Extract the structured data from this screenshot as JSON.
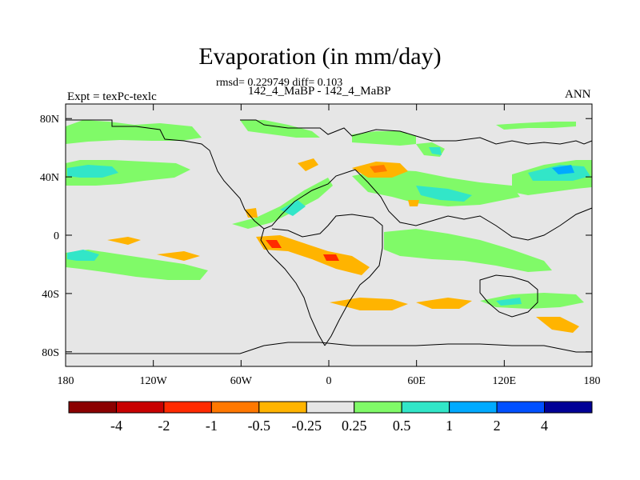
{
  "title": "Evaporation (in mm/day)",
  "stats_text": "rmsd= 0.229749 diff= 0.103",
  "subtitle": "142_4_MaBP - 142_4_MaBP",
  "left_label": "Expt = texPc-texlc",
  "right_label": "ANN",
  "chart_data": {
    "type": "heatmap",
    "title": "Evaporation (in mm/day)",
    "projection": "cylindrical equidistant",
    "xlabel": "",
    "ylabel": "",
    "xlim": [
      -180,
      180
    ],
    "ylim": [
      -90,
      90
    ],
    "x_ticks": [
      {
        "value": -180,
        "label": "180"
      },
      {
        "value": -120,
        "label": "120W"
      },
      {
        "value": -60,
        "label": "60W"
      },
      {
        "value": 0,
        "label": "0"
      },
      {
        "value": 60,
        "label": "60E"
      },
      {
        "value": 120,
        "label": "120E"
      },
      {
        "value": 180,
        "label": "180"
      }
    ],
    "y_ticks": [
      {
        "value": 80,
        "label": "80N"
      },
      {
        "value": 40,
        "label": "40N"
      },
      {
        "value": 0,
        "label": "0"
      },
      {
        "value": -40,
        "label": "40S"
      },
      {
        "value": -80,
        "label": "80S"
      }
    ],
    "colorbar": {
      "colors": [
        "#8b0000",
        "#c80000",
        "#ff2a00",
        "#ff7800",
        "#ffb400",
        "#e6e6e6",
        "#80fa68",
        "#32e6c8",
        "#00aaff",
        "#0050ff",
        "#000096"
      ],
      "labels": [
        "-4",
        "-2",
        "-1",
        "-0.5",
        "-0.25",
        "0.25",
        "0.5",
        "1",
        "2",
        "4"
      ],
      "levels": [
        -4,
        -2,
        -1,
        -0.5,
        -0.25,
        0.25,
        0.5,
        1,
        2,
        4
      ]
    },
    "background_class": "-0.25 to 0.25",
    "regions": [
      {
        "name": "north-pacific-band",
        "class": "0.25 to 0.5",
        "lon": [
          -180,
          -110
        ],
        "lat": [
          50,
          60
        ]
      },
      {
        "name": "north-pacific-core",
        "class": "0.5 to 1",
        "lon": [
          -180,
          -140
        ],
        "lat": [
          38,
          48
        ]
      },
      {
        "name": "north-atlantic-band",
        "class": "0.5 to 1",
        "lon": [
          -50,
          -10
        ],
        "lat": [
          25,
          50
        ]
      },
      {
        "name": "equatorial-pacific",
        "class": "-0.5 to -0.25",
        "lon": [
          -155,
          -140
        ],
        "lat": [
          -3,
          0
        ]
      },
      {
        "name": "amazon-negative",
        "class": "-1 to -0.5",
        "lon": [
          -50,
          5
        ],
        "lat": [
          -30,
          -5
        ]
      },
      {
        "name": "south-pacific-band",
        "class": "0.5 to 1",
        "lon": [
          -180,
          -140
        ],
        "lat": [
          -28,
          -18
        ]
      },
      {
        "name": "indian-ocean-band",
        "class": "0.25 to 0.5",
        "lon": [
          40,
          110
        ],
        "lat": [
          -25,
          -5
        ]
      },
      {
        "name": "west-pacific-band",
        "class": "0.5 to 1",
        "lon": [
          140,
          180
        ],
        "lat": [
          35,
          55
        ]
      },
      {
        "name": "southern-ocean-negative",
        "class": "-0.5 to -0.25",
        "lon": [
          20,
          180
        ],
        "lat": [
          -60,
          -50
        ]
      }
    ]
  }
}
